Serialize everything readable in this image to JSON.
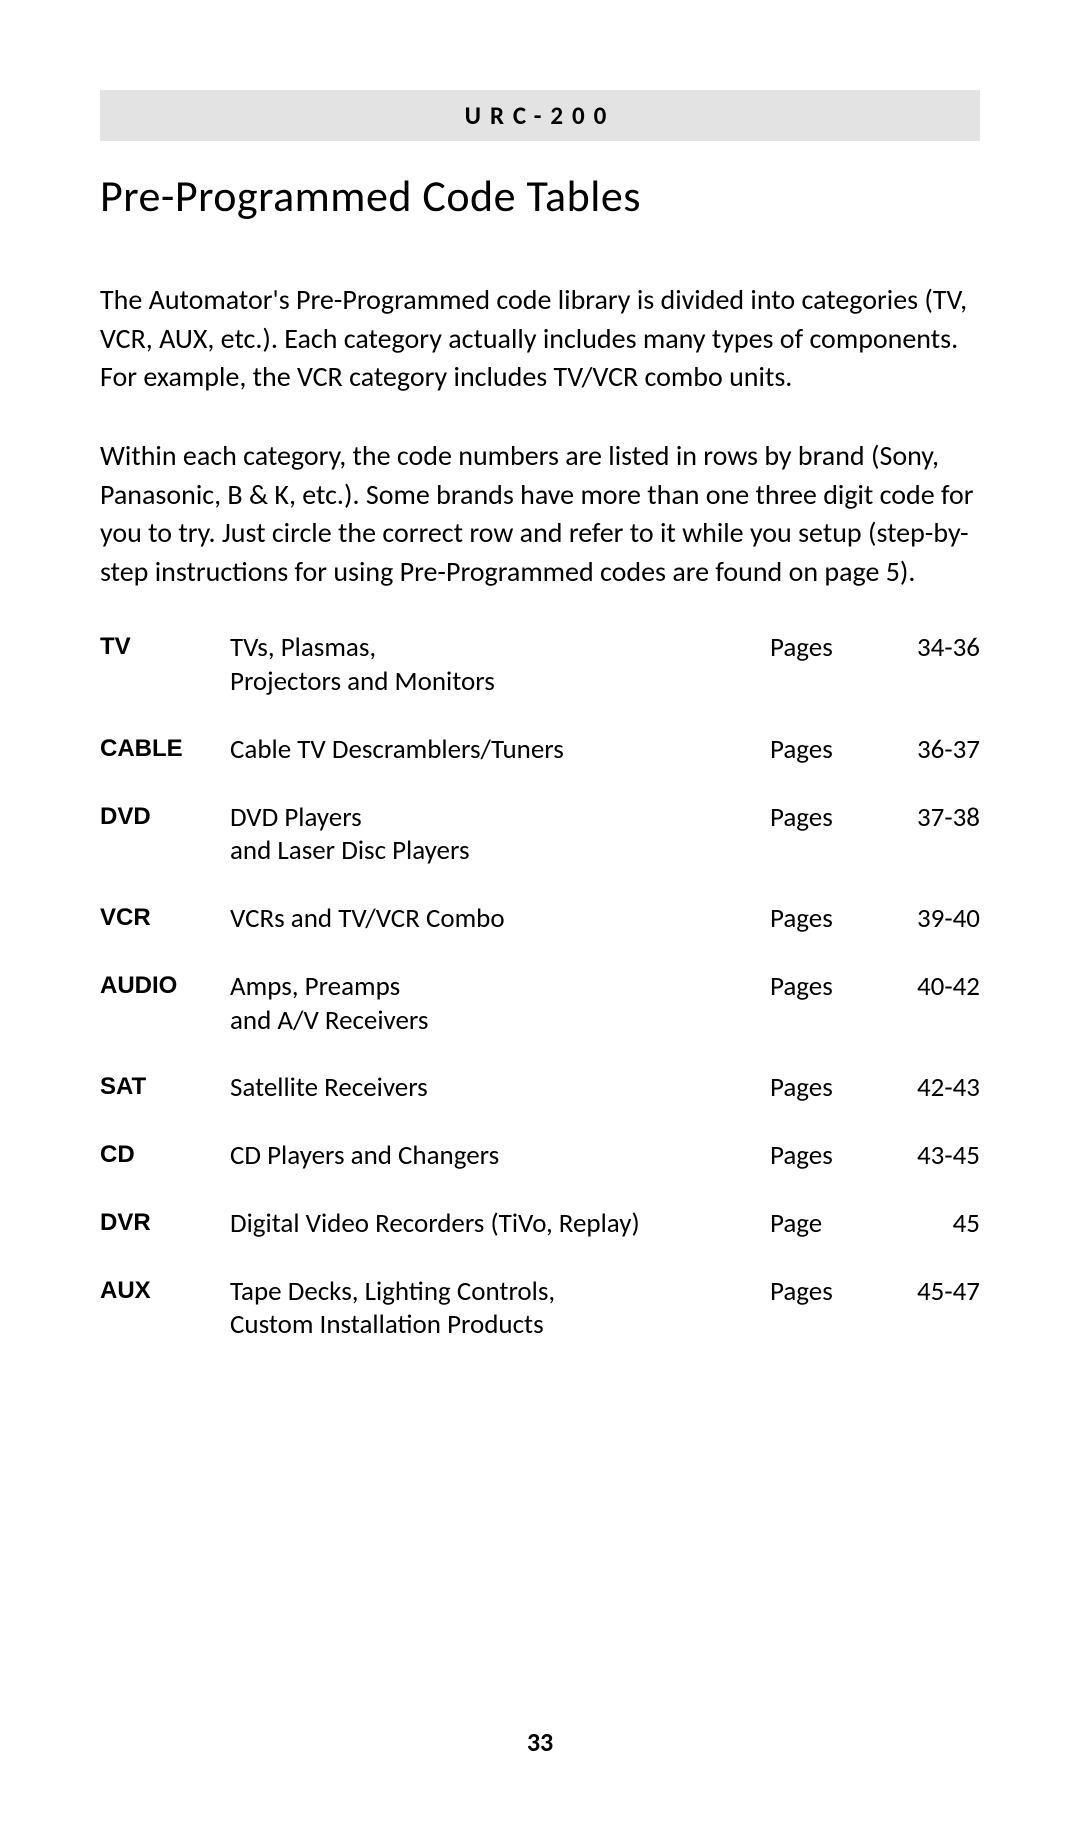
{
  "header": "URC-200",
  "title": "Pre-Programmed Code Tables",
  "para1": "The Automator's Pre-Programmed code library is divided into categories (TV, VCR, AUX, etc.). Each category actually includes many types of components. For example, the VCR category includes TV/VCR combo units.",
  "para2": "Within each category, the code numbers are listed in rows by brand (Sony, Panasonic, B & K, etc.). Some brands have more than one three digit code for you to  try. Just circle the correct row and refer to it while you setup (step-by-step instructions for using Pre-Programmed codes are found on page 5).",
  "rows": [
    {
      "cat": "TV",
      "desc": "TVs, Plasmas,\nProjectors and Monitors",
      "label": "Pages",
      "range": "34-36"
    },
    {
      "cat": "CABLE",
      "desc": "Cable TV Descramblers/Tuners",
      "label": "Pages",
      "range": "36-37"
    },
    {
      "cat": "DVD",
      "desc": "DVD Players\nand Laser Disc Players",
      "label": "Pages",
      "range": "37-38"
    },
    {
      "cat": "VCR",
      "desc": "VCRs and TV/VCR Combo",
      "label": "Pages",
      "range": "39-40"
    },
    {
      "cat": "AUDIO",
      "desc": "Amps, Preamps\nand A/V Receivers",
      "label": "Pages",
      "range": "40-42"
    },
    {
      "cat": "SAT",
      "desc": "Satellite Receivers",
      "label": "Pages",
      "range": "42-43"
    },
    {
      "cat": "CD",
      "desc": "CD Players and Changers",
      "label": "Pages",
      "range": "43-45"
    },
    {
      "cat": "DVR",
      "desc": "Digital Video Recorders (TiVo, Replay)",
      "label": "Page",
      "range": "45"
    },
    {
      "cat": "AUX",
      "desc": "Tape Decks, Lighting Controls,\nCustom Installation Products",
      "label": "Pages",
      "range": "45-47"
    }
  ],
  "page_number": "33"
}
